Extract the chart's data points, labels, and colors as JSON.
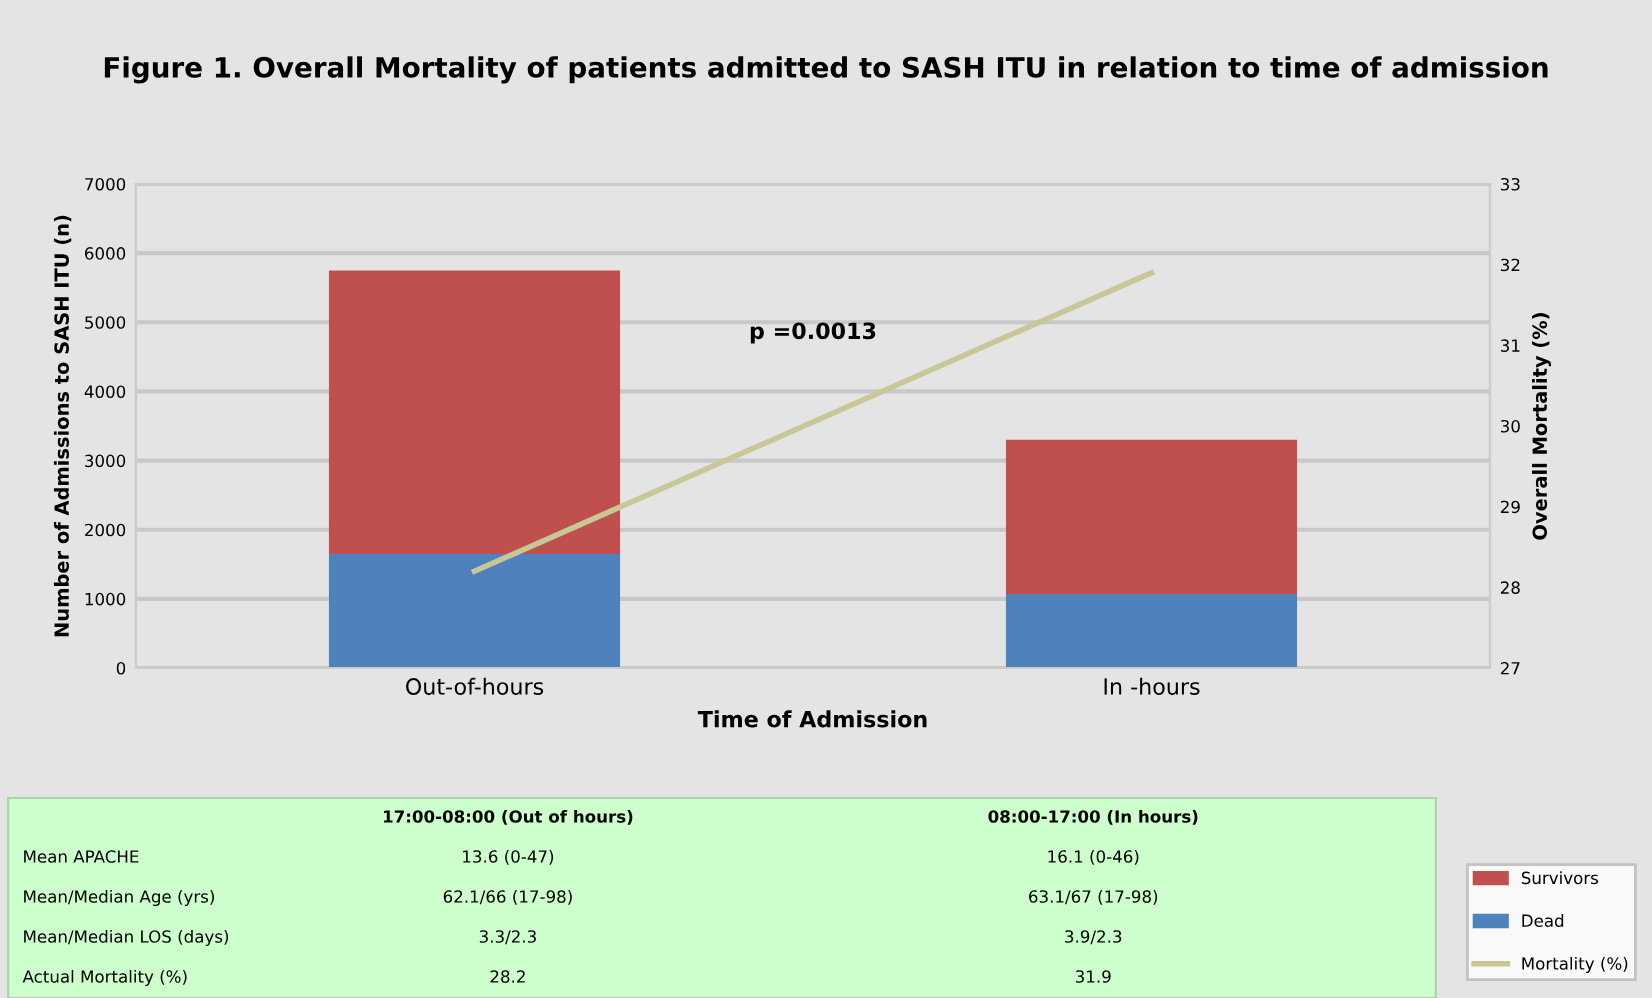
{
  "chart_data": {
    "type": "bar",
    "stacked": true,
    "title": "Figure 1. Overall Mortality of patients admitted to SASH ITU in relation to time of admission",
    "xlabel": "Time of Admission",
    "ylabel": "Number of Admissions to SASH ITU (n)",
    "y2label": "Overall Mortality (%)",
    "categories": [
      "Out-of-hours",
      "In -hours"
    ],
    "series": [
      {
        "name": "Dead",
        "color": "#4f81bd",
        "values": [
          1650,
          1070
        ]
      },
      {
        "name": "Survivors",
        "color": "#c0504d",
        "values": [
          4100,
          2230
        ]
      },
      {
        "name": "Mortality (%)",
        "type": "line",
        "axis": "y2",
        "color": "#c8c896",
        "values": [
          28.2,
          31.9
        ]
      }
    ],
    "ylim": [
      0,
      7000
    ],
    "yticks": [
      0,
      1000,
      2000,
      3000,
      4000,
      5000,
      6000,
      7000
    ],
    "y2lim": [
      27,
      33
    ],
    "y2ticks": [
      27,
      28,
      29,
      30,
      31,
      32,
      33
    ],
    "grid": "y",
    "legend": "bottom right",
    "annotations": [
      "p =0.0013",
      "17:00-08:00 (Out of hours)",
      "08:00-17:00 (In hours)",
      "Mean APACHE",
      "13.6 (0-47)",
      "16.1 (0-46)",
      "Mean/Median Age (yrs)",
      "62.1/66 (17-98)",
      "63.1/67 (17-98)",
      "Mean/Median LOS (days)",
      "3.3/2.3",
      "3.9/2.3",
      "Actual Mortality (%)",
      "28.2",
      "31.9"
    ]
  }
}
